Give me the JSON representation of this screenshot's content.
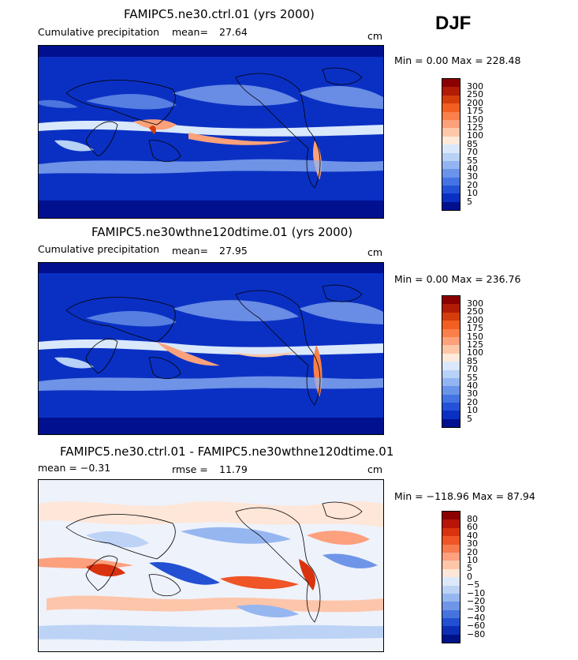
{
  "season": "DJF",
  "panels": [
    {
      "title": "FAMIPC5.ne30.ctrl.01 (yrs 2000)",
      "left_label": "Cumulative precipitation",
      "stat_label": "mean=",
      "stat_value": "27.64",
      "units": "cm",
      "minmax": "Min =   0.00 Max = 228.48",
      "colorbar_labels": [
        "300",
        "250",
        "200",
        "175",
        "150",
        "125",
        "100",
        "85",
        "70",
        "55",
        "40",
        "30",
        "20",
        "10",
        "5"
      ],
      "colors": [
        "#8b0000",
        "#b01c04",
        "#d53d0c",
        "#f25f20",
        "#fa7f4a",
        "#fca17a",
        "#fdc7a8",
        "#feeada",
        "#d9e8fb",
        "#b7d1f7",
        "#92b4f2",
        "#6a93ea",
        "#4474e3",
        "#2352d8",
        "#0a30c3",
        "#00108f"
      ]
    },
    {
      "title": "FAMIPC5.ne30wthne120dtime.01 (yrs 2000)",
      "left_label": "Cumulative precipitation",
      "stat_label": "mean=",
      "stat_value": "27.95",
      "units": "cm",
      "minmax": "Min =   0.00 Max = 236.76",
      "colorbar_labels": [
        "300",
        "250",
        "200",
        "175",
        "150",
        "125",
        "100",
        "85",
        "70",
        "55",
        "40",
        "30",
        "20",
        "10",
        "5"
      ],
      "colors": [
        "#8b0000",
        "#b01c04",
        "#d53d0c",
        "#f25f20",
        "#fa7f4a",
        "#fca17a",
        "#fdc7a8",
        "#feeada",
        "#d9e8fb",
        "#b7d1f7",
        "#92b4f2",
        "#6a93ea",
        "#4474e3",
        "#2352d8",
        "#0a30c3",
        "#00108f"
      ]
    },
    {
      "title": "FAMIPC5.ne30.ctrl.01 - FAMIPC5.ne30wthne120dtime.01",
      "left_label": "mean =  −0.31",
      "stat_label": "rmse =",
      "stat_value": "11.79",
      "units": "cm",
      "minmax": "Min = −118.96 Max =  87.94",
      "colorbar_labels": [
        "80",
        "60",
        "40",
        "30",
        "20",
        "10",
        "5",
        "0",
        "−5",
        "−10",
        "−20",
        "−30",
        "−40",
        "−60",
        "−80"
      ],
      "colors": [
        "#8b0000",
        "#b81407",
        "#d8330e",
        "#ef5526",
        "#f87a4f",
        "#fca07e",
        "#fdc5aa",
        "#fee6d8",
        "#dde9fa",
        "#bcd3f6",
        "#96b6f0",
        "#6e95e8",
        "#4773df",
        "#2350d2",
        "#0c2fb6",
        "#001288"
      ]
    }
  ]
}
